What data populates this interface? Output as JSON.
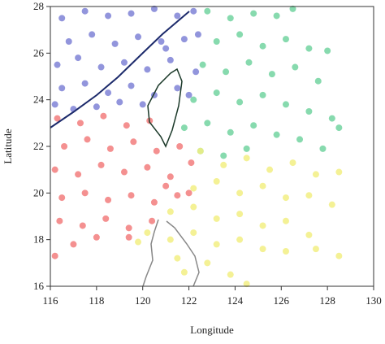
{
  "chart_data": {
    "type": "scatter",
    "x_label": "Longitude",
    "y_label": "Latitude",
    "xlim": [
      116,
      130
    ],
    "ylim": [
      16,
      28
    ],
    "xticks": [
      116,
      118,
      120,
      122,
      124,
      126,
      128,
      130
    ],
    "yticks": [
      16,
      18,
      20,
      22,
      24,
      26,
      28
    ],
    "series": [
      {
        "color": "#7f82d6",
        "x": [
          116.5,
          117.5,
          118.5,
          119.5,
          120.5,
          121.5,
          122.2,
          116.8,
          117.8,
          118.8,
          119.8,
          120.8,
          121.8,
          116.3,
          117.2,
          118.2,
          119.2,
          120.2,
          121.2,
          122.3,
          116.5,
          117.5,
          118.5,
          119.5,
          120.5,
          121.5,
          116.2,
          117,
          118,
          119,
          120,
          122,
          121,
          122.4
        ],
        "values": [
          27.5,
          27.8,
          27.6,
          27.7,
          27.9,
          27.6,
          27.8,
          26.5,
          26.8,
          26.4,
          26.7,
          26.5,
          26.6,
          25.5,
          25.8,
          25.4,
          25.6,
          25.3,
          25.7,
          25.2,
          24.5,
          24.7,
          24.3,
          24.6,
          24.2,
          24.5,
          23.8,
          23.6,
          23.7,
          23.9,
          23.8,
          24.2,
          26.2,
          26.8
        ]
      },
      {
        "color": "#72d3a0",
        "x": [
          122.8,
          123.8,
          124.8,
          125.8,
          126.5,
          123.2,
          124.2,
          125.2,
          126.2,
          127.2,
          128,
          122.6,
          123.6,
          124.6,
          125.6,
          126.6,
          127.6,
          122.2,
          123.2,
          124.2,
          125.2,
          126.2,
          127.2,
          128.2,
          121.8,
          122.8,
          123.8,
          124.8,
          125.8,
          126.8,
          128.5,
          122.5,
          123.5,
          124.5,
          127.8
        ],
        "values": [
          27.8,
          27.5,
          27.7,
          27.6,
          27.9,
          26.5,
          26.8,
          26.3,
          26.6,
          26.2,
          26.1,
          25.5,
          25.2,
          25.6,
          25.1,
          25.4,
          24.8,
          24,
          24.3,
          23.9,
          24.2,
          23.8,
          23.5,
          23.2,
          22.8,
          23,
          22.6,
          22.9,
          22.5,
          22.3,
          22.8,
          21.8,
          21.6,
          21.9,
          21.9
        ]
      },
      {
        "color": "#f27c7c",
        "x": [
          116.3,
          117.3,
          118.3,
          119.3,
          120.3,
          116.6,
          117.6,
          118.6,
          119.6,
          120.6,
          121.6,
          116.2,
          117.2,
          118.2,
          119.2,
          120.2,
          121.2,
          122.1,
          116.5,
          117.5,
          118.5,
          119.5,
          120.5,
          121.5,
          116.4,
          117.4,
          118.4,
          119.4,
          120.4,
          116.2,
          117,
          118,
          119.4,
          121,
          122
        ],
        "values": [
          23.2,
          23,
          23.3,
          22.9,
          23.1,
          22,
          22.3,
          21.9,
          22.2,
          21.8,
          22,
          21,
          20.8,
          21.2,
          20.9,
          21.1,
          20.7,
          21.3,
          19.8,
          20,
          19.7,
          19.9,
          19.6,
          19.9,
          18.8,
          18.6,
          18.9,
          18.5,
          18.8,
          17.3,
          17.8,
          18.1,
          18.1,
          20.3,
          20
        ]
      },
      {
        "color": "#f2ef82",
        "x": [
          122.5,
          123.5,
          124.5,
          125.5,
          126.5,
          127.5,
          128.5,
          122.2,
          123.2,
          124.2,
          125.2,
          126.2,
          127.2,
          128.2,
          121.2,
          122.2,
          123.2,
          124.2,
          125.2,
          126.2,
          127.2,
          120.2,
          121.2,
          122.2,
          123.2,
          124.2,
          125.2,
          126.2,
          127.5,
          128.5,
          119.8,
          121.5,
          122.8,
          123.8,
          124.5,
          121.8
        ],
        "values": [
          21.8,
          21.2,
          21.5,
          21,
          21.3,
          20.8,
          20.9,
          20.2,
          20.5,
          20,
          20.3,
          19.8,
          19.9,
          19.5,
          19.2,
          19.4,
          18.9,
          19.1,
          18.6,
          18.8,
          18.2,
          18.3,
          18,
          18.3,
          17.8,
          18,
          17.6,
          17.5,
          17.6,
          17.3,
          17.9,
          17.2,
          17,
          16.5,
          16.1,
          16.6
        ]
      }
    ]
  }
}
